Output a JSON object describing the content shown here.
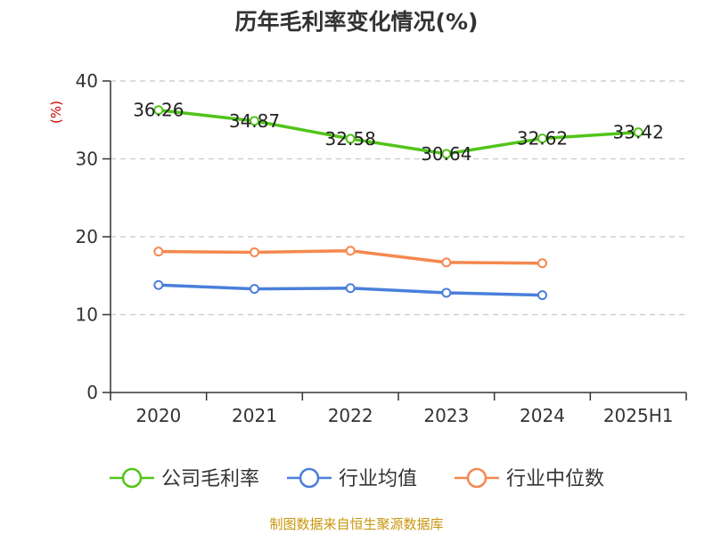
{
  "chart_data": {
    "type": "line",
    "title": "历年毛利率变化情况(%)",
    "unit_label": "(%)",
    "categories": [
      "2020",
      "2021",
      "2022",
      "2023",
      "2024",
      "2025H1"
    ],
    "ylim": [
      0,
      40
    ],
    "yticks": [
      0,
      10,
      20,
      30,
      40
    ],
    "grid": true,
    "legend_position": "bottom",
    "series": [
      {
        "name": "公司毛利率",
        "color": "#52c41a",
        "values": [
          36.26,
          34.87,
          32.58,
          30.64,
          32.62,
          33.42
        ],
        "labels": [
          "36.26",
          "34.87",
          "32.58",
          "30.64",
          "32.62",
          "33.42"
        ]
      },
      {
        "name": "行业均值",
        "color": "#4a7fdb",
        "values": [
          13.8,
          13.3,
          13.4,
          12.8,
          12.5,
          null
        ]
      },
      {
        "name": "行业中位数",
        "color": "#f5884f",
        "values": [
          18.1,
          18.0,
          18.2,
          16.7,
          16.6,
          null
        ]
      }
    ],
    "source": "制图数据来自恒生聚源数据库"
  }
}
